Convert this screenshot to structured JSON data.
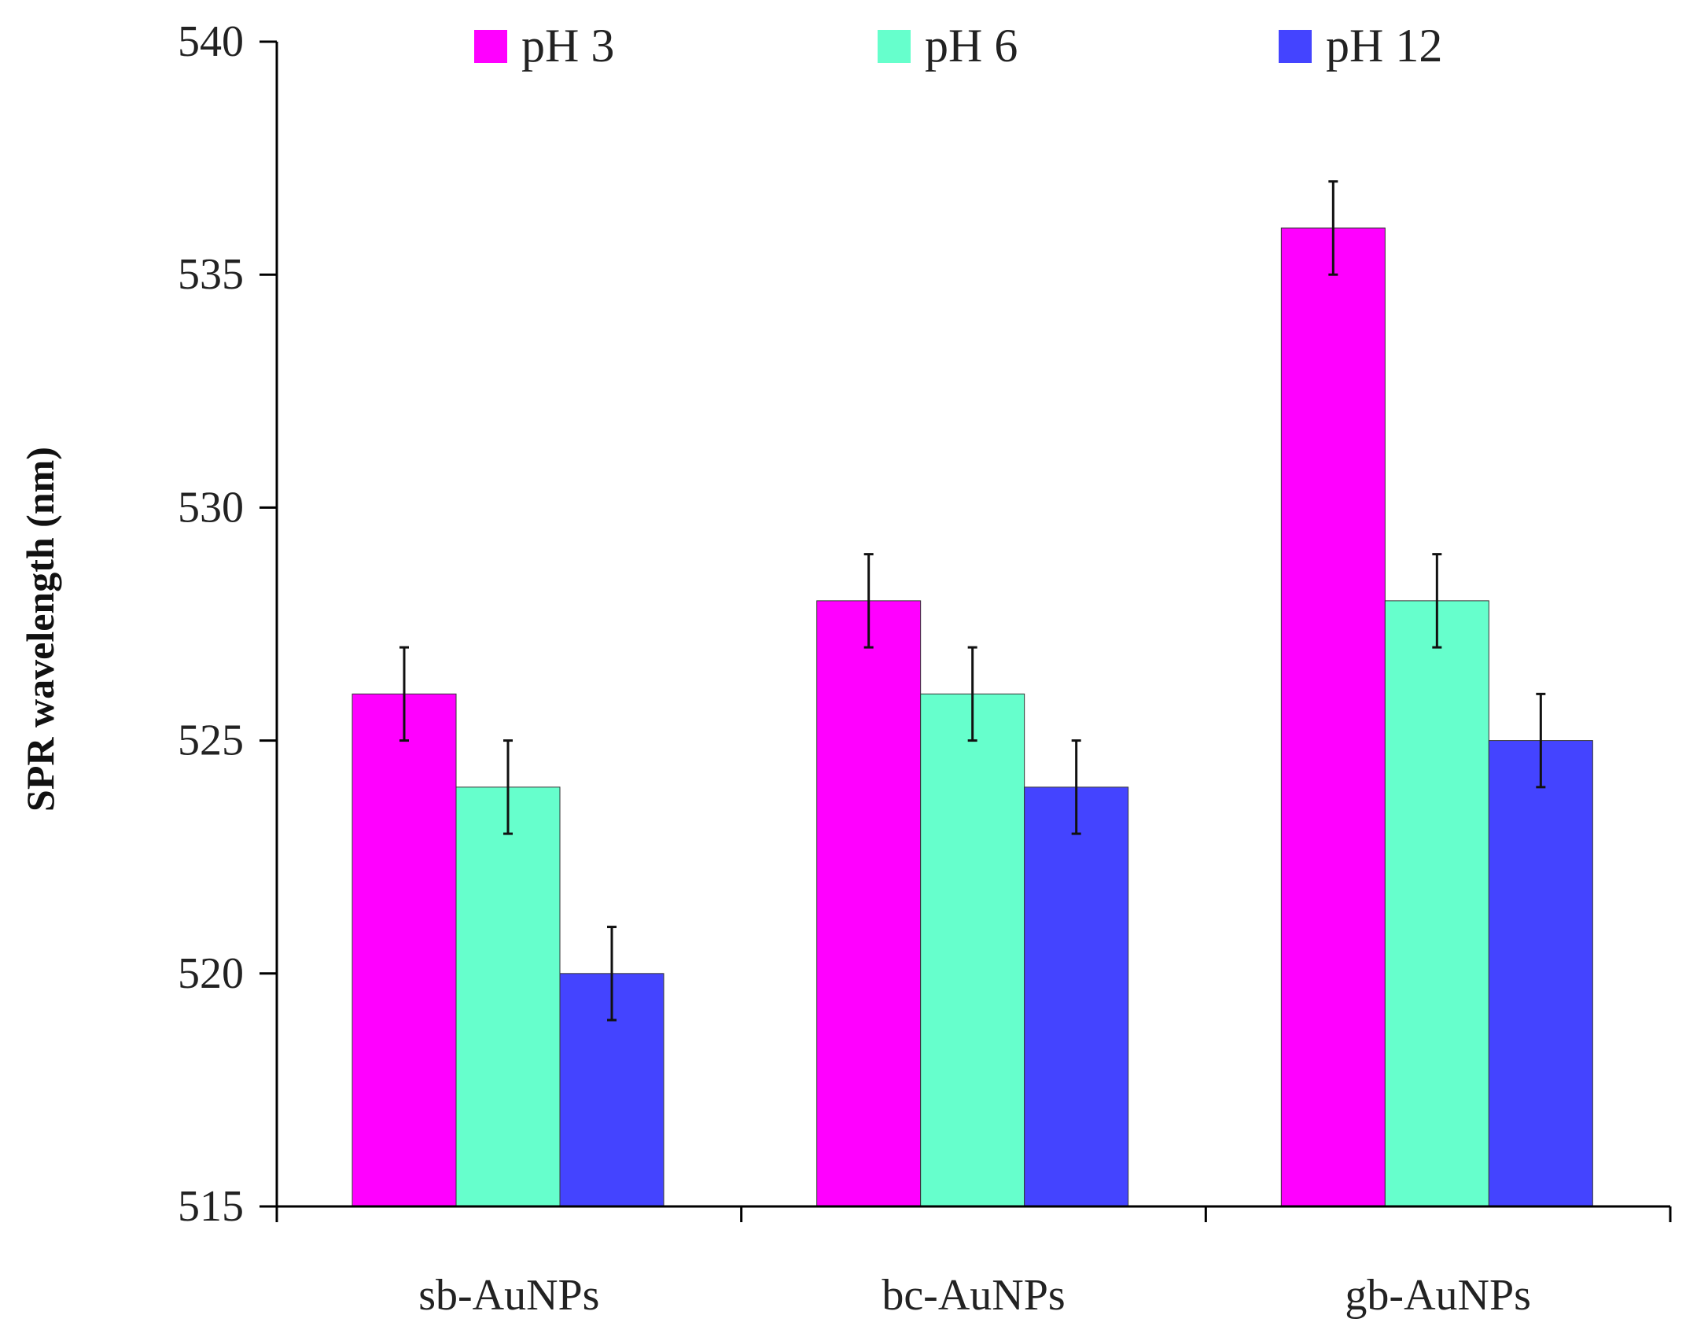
{
  "chart_data": {
    "type": "bar",
    "title": "",
    "xlabel": "",
    "ylabel": "SPR wavelength (nm)",
    "ylim": [
      515,
      540
    ],
    "yticks": [
      515,
      520,
      525,
      530,
      535,
      540
    ],
    "categories": [
      "sb-AuNPs",
      "bc-AuNPs",
      "gb-AuNPs"
    ],
    "series": [
      {
        "name": "pH 3",
        "color": "#FF00FF",
        "values": [
          526,
          528,
          536
        ],
        "errors": [
          1,
          1,
          1
        ]
      },
      {
        "name": "pH 6",
        "color": "#66FFCC",
        "values": [
          524,
          526,
          528
        ],
        "errors": [
          1,
          1,
          1
        ]
      },
      {
        "name": "pH 12",
        "color": "#4444FF",
        "values": [
          520,
          524,
          525
        ],
        "errors": [
          1,
          1,
          1
        ]
      }
    ],
    "grid": false,
    "legend_position": "top"
  }
}
